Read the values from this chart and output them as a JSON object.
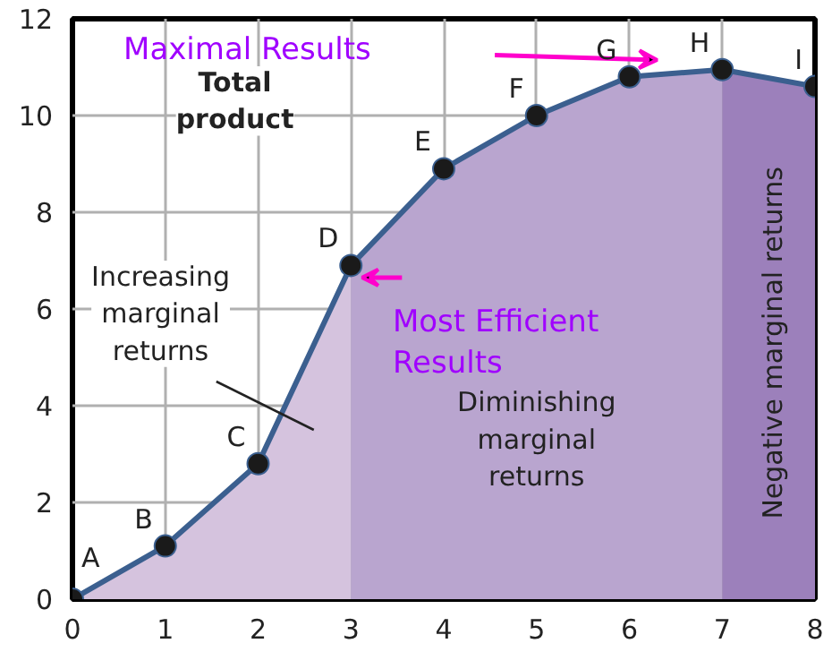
{
  "chart_data": {
    "type": "line",
    "xlim": [
      0,
      8
    ],
    "ylim": [
      0,
      12
    ],
    "xticks": [
      0,
      1,
      2,
      3,
      4,
      5,
      6,
      7,
      8
    ],
    "yticks": [
      0,
      2,
      4,
      6,
      8,
      10,
      12
    ],
    "grid": true,
    "series": [
      {
        "type": "area",
        "color": "#d5c3de",
        "x": [
          0,
          1,
          2,
          3
        ],
        "values": [
          0,
          1.1,
          2.8,
          6.9
        ]
      },
      {
        "type": "area",
        "color": "#b9a5cf",
        "x": [
          3,
          4,
          5,
          6,
          7
        ],
        "values": [
          6.9,
          8.9,
          10,
          10.8,
          10.95
        ]
      },
      {
        "type": "area",
        "color": "#9c80bb",
        "x": [
          7,
          8
        ],
        "values": [
          10.95,
          10.6
        ]
      },
      {
        "color": "#3b5f8f",
        "marker": "circle",
        "x": [
          0,
          1,
          2,
          3,
          4,
          5,
          6,
          7,
          8
        ],
        "values": [
          0,
          1.1,
          2.8,
          6.9,
          8.9,
          10,
          10.8,
          10.95,
          10.6
        ]
      }
    ],
    "annotations": [
      "Total\nproduct",
      "Increasing\nmarginal\nreturns",
      "Diminishing\nmarginal\nreturns",
      "Negative marginal returns",
      "Maximal Results",
      "Most Efficient\nResults",
      {
        "text": "A",
        "x": 0,
        "y": 0
      },
      {
        "text": "B",
        "x": 1,
        "y": 1.1
      },
      {
        "text": "C",
        "x": 2,
        "y": 2.8
      },
      {
        "text": "D",
        "x": 3,
        "y": 6.9
      },
      {
        "text": "E",
        "x": 4,
        "y": 8.9
      },
      {
        "text": "F",
        "x": 5,
        "y": 10
      },
      {
        "text": "G",
        "x": 6,
        "y": 10.8
      },
      {
        "text": "H",
        "x": 7,
        "y": 10.95
      },
      {
        "text": "I",
        "x": 8,
        "y": 10.6
      }
    ]
  }
}
